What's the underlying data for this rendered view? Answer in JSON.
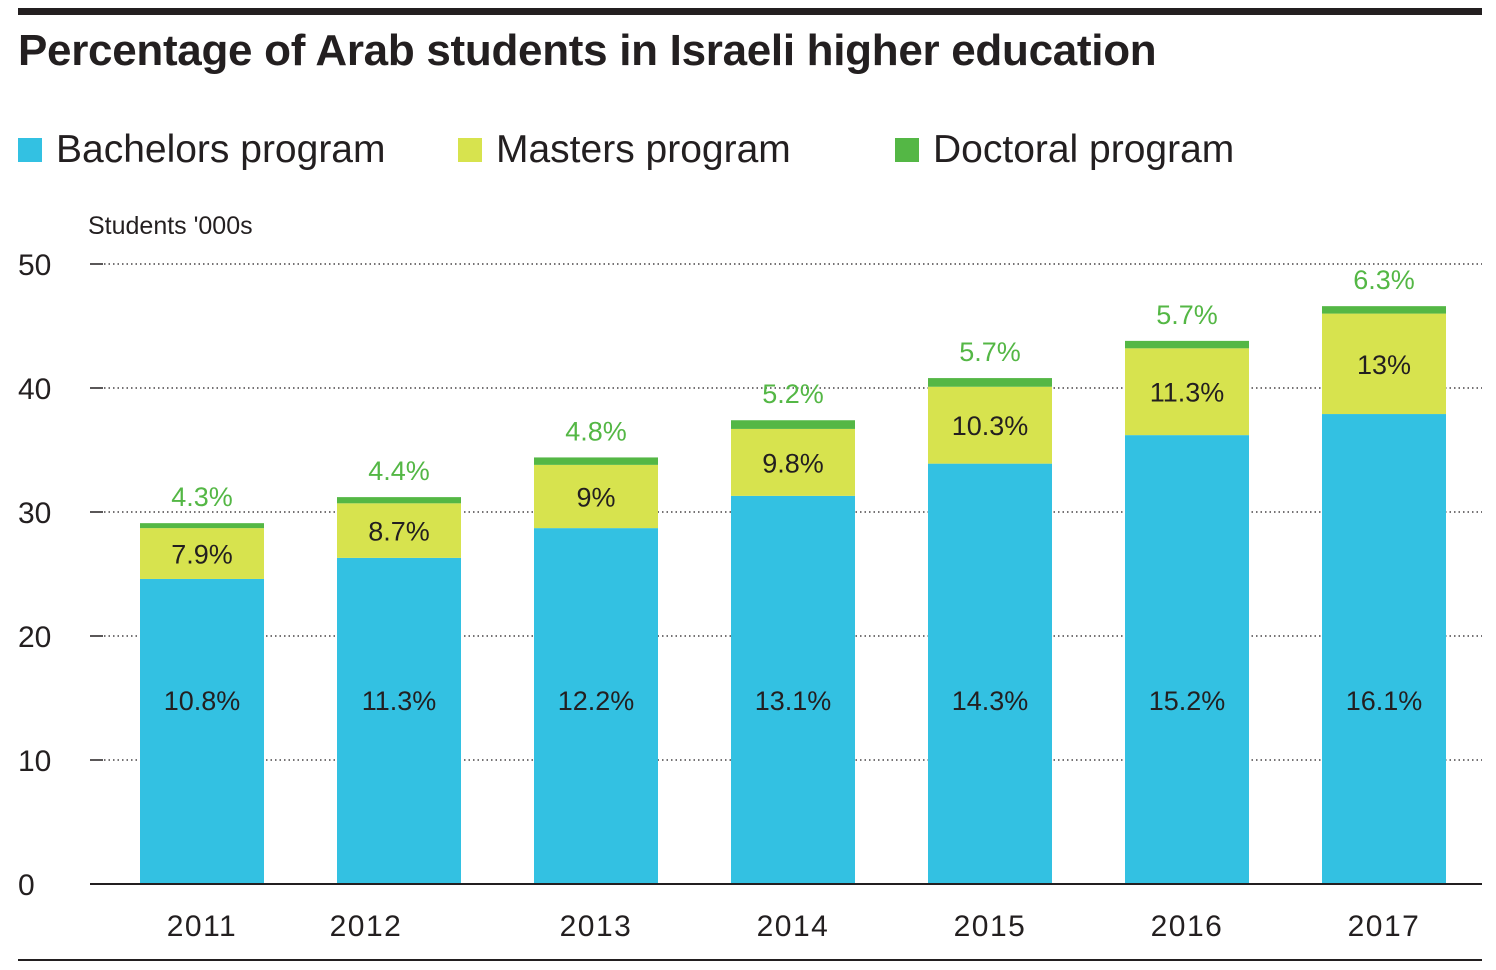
{
  "chart_data": {
    "type": "bar",
    "stacked": true,
    "title": "Percentage of Arab students in Israeli higher education",
    "ylabel": "Students '000s",
    "xlabel": "",
    "ylim": [
      0,
      50
    ],
    "yticks": [
      0,
      10,
      20,
      30,
      40,
      50
    ],
    "grid": true,
    "legend_position": "top",
    "categories": [
      "2011",
      "2012",
      "2013",
      "2014",
      "2015",
      "2016",
      "2017"
    ],
    "series": [
      {
        "name": "Bachelors program",
        "color": "#33c1e2",
        "label_color": "#231f20",
        "values": [
          24.6,
          26.3,
          28.7,
          31.3,
          33.9,
          36.2,
          37.9
        ],
        "labels": [
          "10.8%",
          "11.3%",
          "12.2%",
          "13.1%",
          "14.3%",
          "15.2%",
          "16.1%"
        ]
      },
      {
        "name": "Masters program",
        "color": "#d7e34e",
        "label_color": "#231f20",
        "values": [
          4.1,
          4.4,
          5.1,
          5.4,
          6.2,
          7.0,
          8.1
        ],
        "labels": [
          "7.9%",
          "8.7%",
          "9%",
          "9.8%",
          "10.3%",
          "11.3%",
          "13%"
        ]
      },
      {
        "name": "Doctoral program",
        "color": "#54b745",
        "label_color": "#54b745",
        "values": [
          0.4,
          0.5,
          0.6,
          0.7,
          0.7,
          0.6,
          0.6
        ],
        "labels": [
          "4.3%",
          "4.4%",
          "4.8%",
          "5.2%",
          "5.7%",
          "5.7%",
          "6.3%"
        ]
      }
    ]
  }
}
